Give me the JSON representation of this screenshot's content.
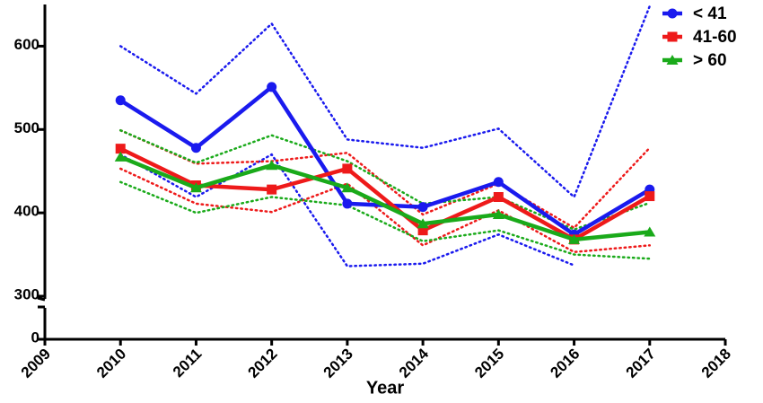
{
  "chart_data": {
    "type": "line",
    "x_label": "Year",
    "x": [
      2010,
      2011,
      2012,
      2013,
      2014,
      2015,
      2016,
      2017
    ],
    "xlim": [
      2009,
      2018
    ],
    "xticks": [
      2009,
      2010,
      2011,
      2012,
      2013,
      2014,
      2015,
      2016,
      2017,
      2018
    ],
    "ylim": [
      0,
      650
    ],
    "ybreak": [
      0,
      300
    ],
    "yticks": [
      0,
      300,
      400,
      500,
      600
    ],
    "legend": "top-right",
    "series": [
      {
        "name": "< 41",
        "color": "#1a1aee",
        "marker": "circle",
        "values": [
          535,
          478,
          551,
          411,
          407,
          437,
          374,
          428
        ],
        "upper": [
          600,
          543,
          627,
          488,
          478,
          501,
          419,
          648
        ],
        "lower": [
          470,
          419,
          470,
          336,
          339,
          374,
          337,
          null
        ]
      },
      {
        "name": "41-60",
        "color": "#ee1a1a",
        "marker": "square",
        "values": [
          477,
          433,
          428,
          453,
          379,
          419,
          368,
          420
        ],
        "upper": [
          499,
          459,
          462,
          472,
          398,
          435,
          382,
          478
        ],
        "lower": [
          453,
          411,
          401,
          435,
          361,
          403,
          353,
          361
        ]
      },
      {
        "name": "> 60",
        "color": "#1aaa1a",
        "marker": "triangle",
        "values": [
          467,
          430,
          457,
          430,
          387,
          398,
          368,
          377
        ],
        "upper": [
          499,
          460,
          493,
          462,
          411,
          419,
          380,
          412
        ],
        "lower": [
          437,
          400,
          419,
          409,
          366,
          379,
          350,
          345
        ]
      }
    ]
  }
}
